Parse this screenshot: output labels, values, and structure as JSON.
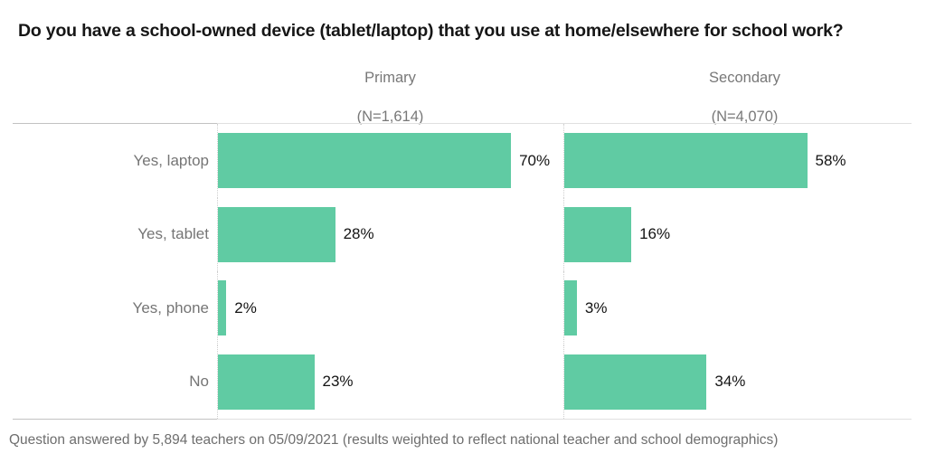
{
  "title": "Do you have a school-owned device (tablet/laptop) that you use at home/elsewhere for school work?",
  "footer": "Question answered by 5,894 teachers on 05/09/2021 (results weighted to reflect national teacher and school demographics)",
  "chart_data": {
    "type": "bar",
    "orientation": "horizontal",
    "title": "Do you have a school-owned device (tablet/laptop) that you use at home/elsewhere for school work?",
    "categories": [
      "Yes, laptop",
      "Yes, tablet",
      "Yes, phone",
      "No"
    ],
    "series": [
      {
        "name": "Primary",
        "n_label": "(N=1,614)",
        "values": [
          70,
          28,
          2,
          23
        ]
      },
      {
        "name": "Secondary",
        "n_label": "(N=4,070)",
        "values": [
          58,
          16,
          3,
          34
        ]
      }
    ],
    "value_suffix": "%",
    "bar_color": "#60cba3",
    "xlim": [
      0,
      81
    ],
    "grid": "dotted axis line at zero of each panel",
    "legend_position": "none",
    "value_labels": "outside-end"
  }
}
